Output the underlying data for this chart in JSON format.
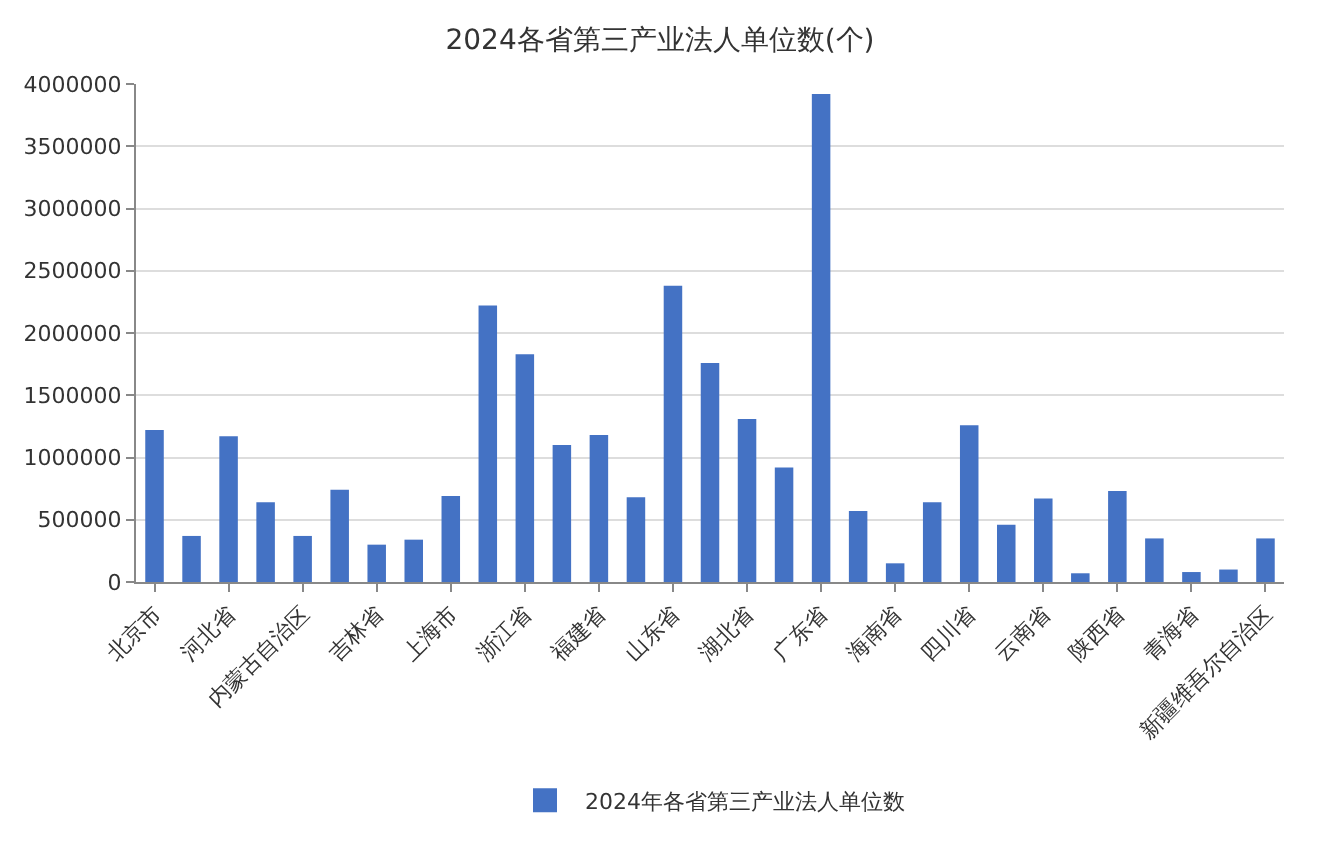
{
  "chart_data": {
    "type": "bar",
    "title": "2024各省第三产业法人单位数(个)",
    "categories": [
      "北京市",
      null,
      "河北省",
      null,
      "内蒙古自治区",
      null,
      "吉林省",
      null,
      "上海市",
      null,
      "浙江省",
      null,
      "福建省",
      null,
      "山东省",
      null,
      "湖北省",
      null,
      "广东省",
      null,
      "海南省",
      null,
      "四川省",
      null,
      "云南省",
      null,
      "陕西省",
      null,
      "青海省",
      null,
      "新疆维吾尔自治区"
    ],
    "series": [
      {
        "name": "2024年各省第三产业法人单位数",
        "color": "#4472c4",
        "values": [
          1220000,
          370000,
          1170000,
          640000,
          370000,
          740000,
          300000,
          340000,
          690000,
          2220000,
          1830000,
          1100000,
          1180000,
          680000,
          2380000,
          1760000,
          1310000,
          920000,
          3920000,
          570000,
          150000,
          640000,
          1260000,
          460000,
          670000,
          70000,
          730000,
          350000,
          80000,
          100000,
          350000
        ]
      }
    ],
    "ylim": [
      0,
      4000000
    ],
    "yticks": [
      0,
      500000,
      1000000,
      1500000,
      2000000,
      2500000,
      3000000,
      3500000,
      4000000
    ],
    "grid": "y",
    "legend": "bottom"
  }
}
